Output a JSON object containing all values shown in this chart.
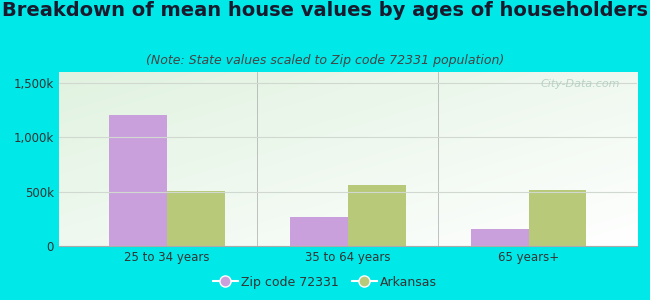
{
  "title": "Breakdown of mean house values by ages of householders",
  "subtitle": "(Note: State values scaled to Zip code 72331 population)",
  "categories": [
    "25 to 34 years",
    "35 to 64 years",
    "65 years+"
  ],
  "zip_values": [
    1200000,
    270000,
    160000
  ],
  "state_values": [
    510000,
    565000,
    515000
  ],
  "zip_color": "#c9a0dc",
  "state_color": "#b8c97a",
  "background_color": "#00e8e8",
  "ylim": [
    0,
    1600000
  ],
  "yticks": [
    0,
    500000,
    1000000,
    1500000
  ],
  "ytick_labels": [
    "0",
    "500k",
    "1,000k",
    "1,500k"
  ],
  "bar_width": 0.32,
  "legend_zip_label": "Zip code 72331",
  "legend_state_label": "Arkansas",
  "title_fontsize": 14,
  "subtitle_fontsize": 9,
  "tick_fontsize": 8.5,
  "legend_fontsize": 9,
  "watermark_text": "City-Data.com",
  "watermark_color": "#b0ccc0",
  "grid_color": "#d0d8d0",
  "plot_bg_color": "#eef5ee"
}
